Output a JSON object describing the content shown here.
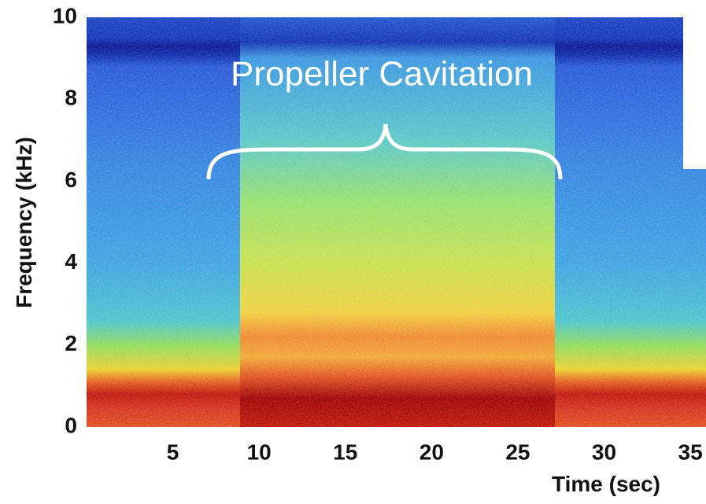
{
  "chart_data": {
    "type": "spectrogram",
    "annotation": "Propeller Cavitation",
    "xlabel": "Time (sec)",
    "ylabel": "Frequency (kHz)",
    "xlim": [
      0,
      36
    ],
    "ylim": [
      0,
      10
    ],
    "xticks": [
      5,
      10,
      15,
      20,
      25,
      30,
      35
    ],
    "yticks": [
      0,
      2,
      4,
      6,
      8,
      10
    ]
  }
}
